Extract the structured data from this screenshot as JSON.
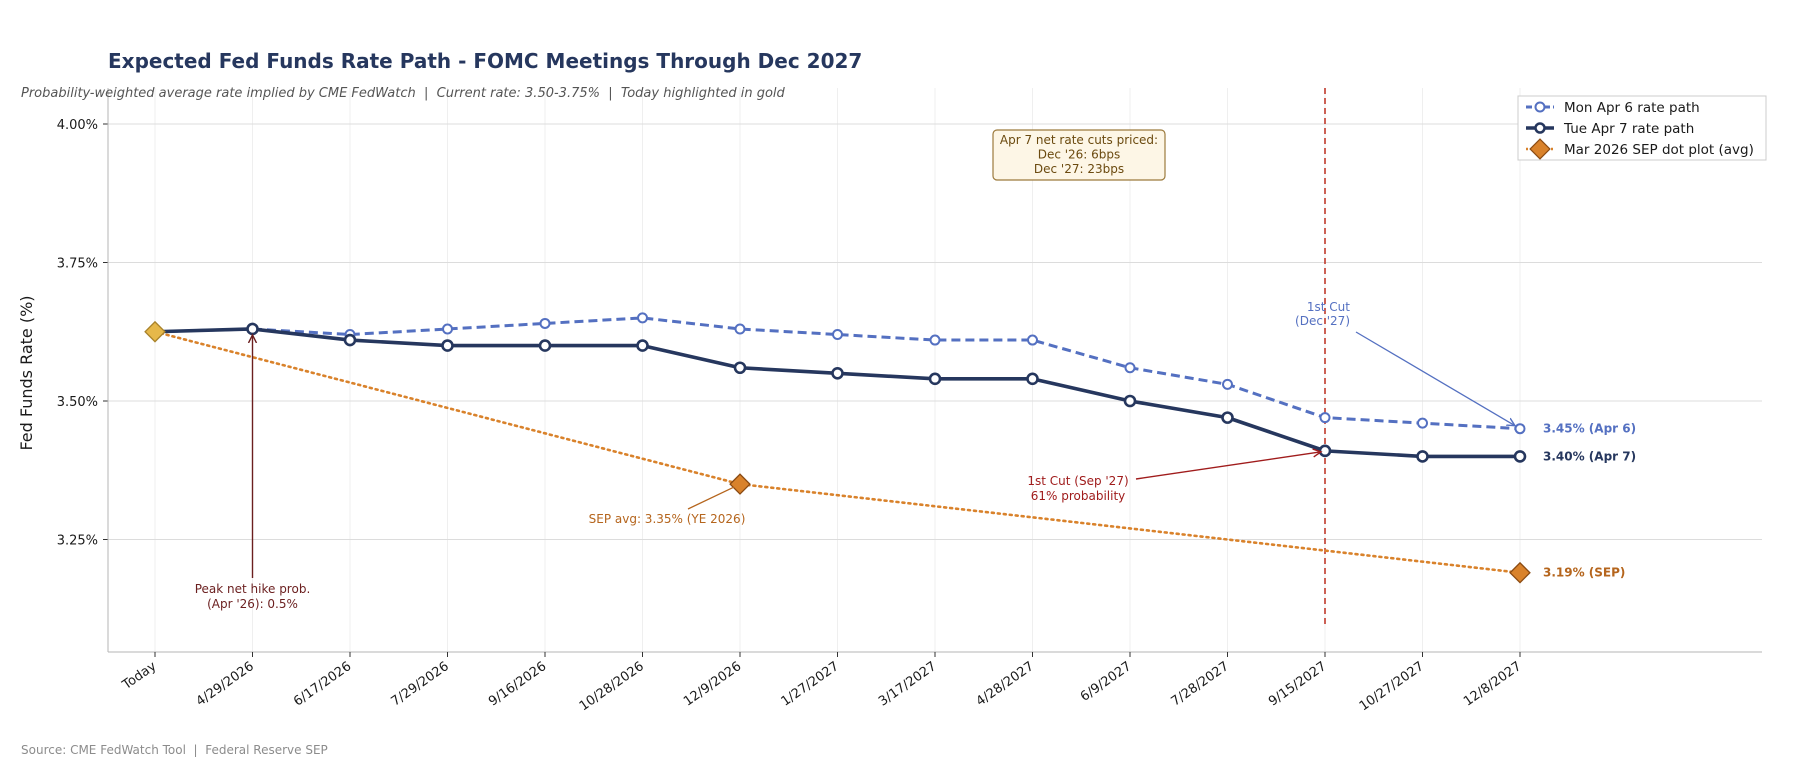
{
  "chart_data": {
    "type": "line",
    "title": "Expected Fed Funds Rate Path - FOMC Meetings Through Dec 2027",
    "subtitle": "Probability-weighted average rate implied by CME FedWatch  |  Current rate: 3.50-3.75%  |  Today highlighted in gold",
    "xlabel": "",
    "ylabel": "Fed Funds Rate (%)",
    "ylim": [
      3.06,
      4.05
    ],
    "yticks": [
      3.25,
      3.5,
      3.75,
      4.0
    ],
    "ytick_labels": [
      "3.25%",
      "3.50%",
      "3.75%",
      "4.00%"
    ],
    "categories": [
      "Today",
      "4/29/2026",
      "6/17/2026",
      "7/29/2026",
      "9/16/2026",
      "10/28/2026",
      "12/9/2026",
      "1/27/2027",
      "3/17/2027",
      "4/28/2027",
      "6/9/2027",
      "7/28/2027",
      "9/15/2027",
      "10/27/2027",
      "12/8/2027"
    ],
    "series": [
      {
        "name": "Mon Apr 6 rate path",
        "style": "dashed",
        "color": "#5470c1",
        "values": [
          3.625,
          3.63,
          3.62,
          3.63,
          3.64,
          3.65,
          3.63,
          3.62,
          3.61,
          3.61,
          3.56,
          3.53,
          3.47,
          3.46,
          3.45
        ]
      },
      {
        "name": "Tue Apr 7 rate path",
        "style": "solid",
        "color": "#26375e",
        "values": [
          3.625,
          3.63,
          3.61,
          3.6,
          3.6,
          3.6,
          3.56,
          3.55,
          3.54,
          3.54,
          3.5,
          3.47,
          3.41,
          3.4,
          3.4
        ]
      },
      {
        "name": "Mar 2026 SEP dot plot (avg)",
        "style": "dotted",
        "color": "#d9822b",
        "points": [
          {
            "x": "Today",
            "y": 3.625
          },
          {
            "x": "12/9/2026",
            "y": 3.35
          },
          {
            "x": "12/8/2027",
            "y": 3.19
          }
        ],
        "markers": [
          {
            "x": "12/9/2026",
            "y": 3.35
          },
          {
            "x": "12/8/2027",
            "y": 3.19
          }
        ]
      }
    ],
    "today_marker": {
      "x": "Today",
      "y": 3.625,
      "color": "#e6b84a"
    },
    "vline": {
      "x": "9/15/2027",
      "color": "#c0392b",
      "style": "dashed"
    },
    "end_labels": [
      {
        "text": "3.45% (Apr 6)",
        "color": "#5470c1"
      },
      {
        "text": "3.40% (Apr 7)",
        "color": "#26375e"
      },
      {
        "text": "3.19% (SEP)",
        "color": "#b5651d"
      }
    ],
    "annotations": {
      "peak_hike": {
        "lines": [
          "Peak net hike prob.",
          "(Apr '26): 0.5%"
        ],
        "color": "#6b1f1f"
      },
      "sep_avg": {
        "text": "SEP avg: 3.35% (YE 2026)",
        "color": "#b5651d"
      },
      "first_cut_apr7": {
        "lines": [
          "1st Cut (Sep '27)",
          "61% probability"
        ],
        "color": "#a01c1c"
      },
      "first_cut_apr6": {
        "lines": [
          "1st Cut",
          "(Dec '27)"
        ],
        "color": "#5470c1"
      },
      "box": {
        "lines": [
          "Apr 7 net rate cuts priced:",
          "Dec '26: 6bps",
          "Dec '27: 23bps"
        ],
        "text_color": "#6b4a0f",
        "fill": "#fdf6e6",
        "border": "#9c7a3c"
      }
    },
    "legend_position": "top-right",
    "grid": true,
    "source": "Source: CME FedWatch Tool  |  Federal Reserve SEP"
  },
  "colors": {
    "title": "#26375e",
    "subtitle": "#555555",
    "grid": "#dcdcdc",
    "axis": "#b5b5b5"
  }
}
